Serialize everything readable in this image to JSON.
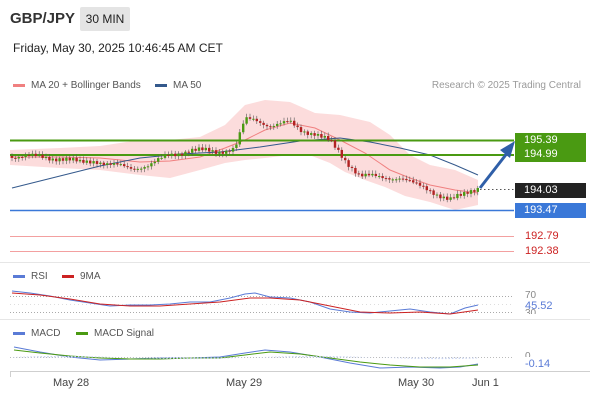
{
  "header": {
    "symbol": "GBP/JPY",
    "interval": "30 MIN",
    "datetime": "Friday, May 30, 2025 10:46:45 AM CET"
  },
  "legend": {
    "ma20": "MA 20 + Bollinger Bands",
    "ma50": "MA 50",
    "research": "Research © 2025 Trading Central",
    "colors": {
      "ma20": "#f08080",
      "ma50": "#34598c",
      "resistance": "#4a9a12",
      "current": "#222222",
      "support": "#3a78d8",
      "target": "#cc2222"
    }
  },
  "price_levels": {
    "resistance_1": "195.39",
    "resistance_2": "194.99",
    "current": "194.03",
    "support": "193.47",
    "level_1": "192.79",
    "level_2": "192.38"
  },
  "rsi": {
    "label": "RSI",
    "ma_label": "9MA",
    "level_70": "70",
    "level_30": "30",
    "value": "45.52"
  },
  "macd": {
    "label": "MACD",
    "signal_label": "MACD Signal",
    "zero": "0",
    "value": "-0.14"
  },
  "x_axis": [
    "May 28",
    "May 29",
    "May 30",
    "Jun 1"
  ]
}
